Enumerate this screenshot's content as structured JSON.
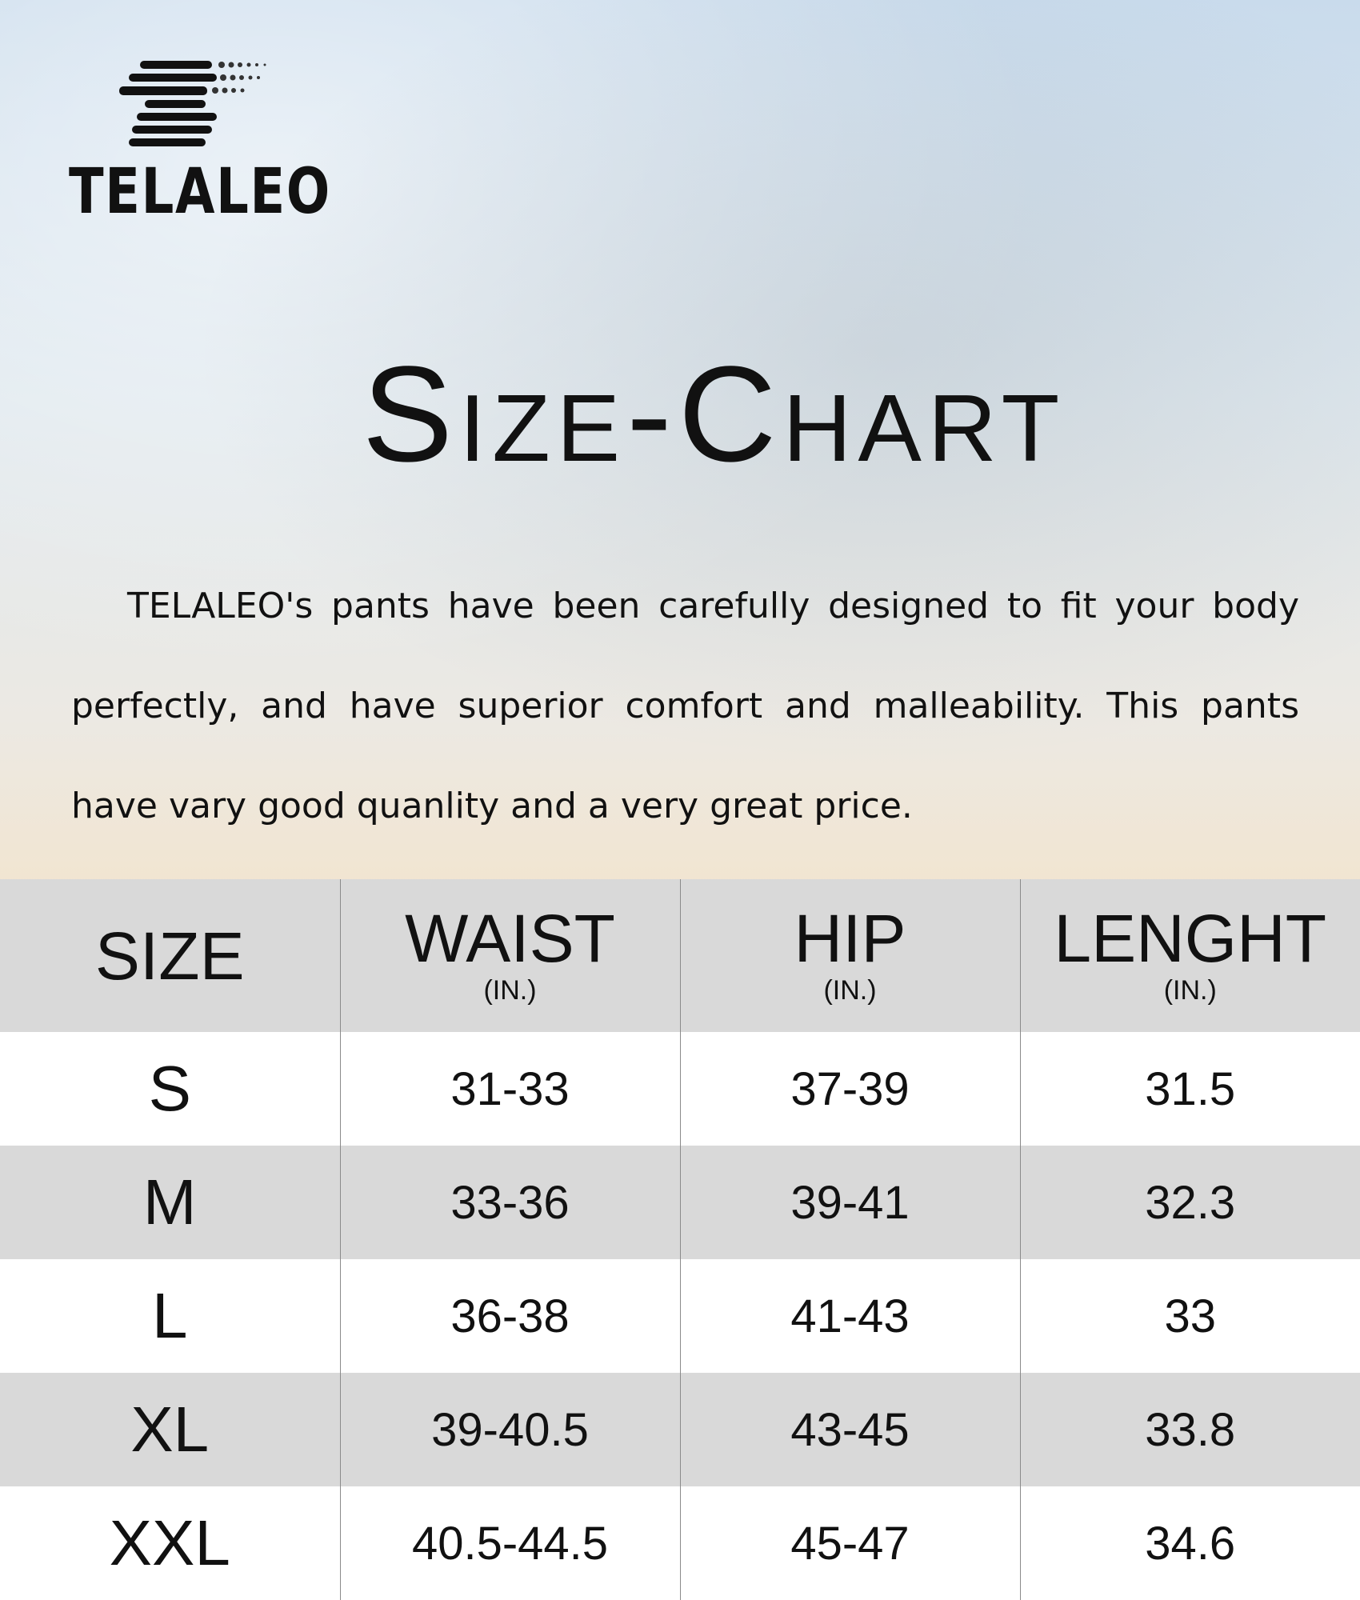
{
  "logo": {
    "text": "TELALEO"
  },
  "title": "Size-Chart",
  "description": "TELALEO's pants have been carefully designed to fit your body perfectly, and have superior comfort and malleability. This pants have vary good quanlity and a very great price.",
  "table": {
    "header": [
      {
        "label": "SIZE"
      },
      {
        "label": "WAIST",
        "unit": "(IN.)"
      },
      {
        "label": "HIP",
        "unit": "(IN.)"
      },
      {
        "label": "LENGHT",
        "unit": "(IN.)"
      }
    ],
    "rows": [
      [
        "S",
        "31-33",
        "37-39",
        "31.5"
      ],
      [
        "M",
        "33-36",
        "39-41",
        "32.3"
      ],
      [
        "L",
        "36-38",
        "41-43",
        "33"
      ],
      [
        "XL",
        "39-40.5",
        "43-45",
        "33.8"
      ],
      [
        "XXL",
        "40.5-44.5",
        "45-47",
        "34.6"
      ]
    ]
  }
}
